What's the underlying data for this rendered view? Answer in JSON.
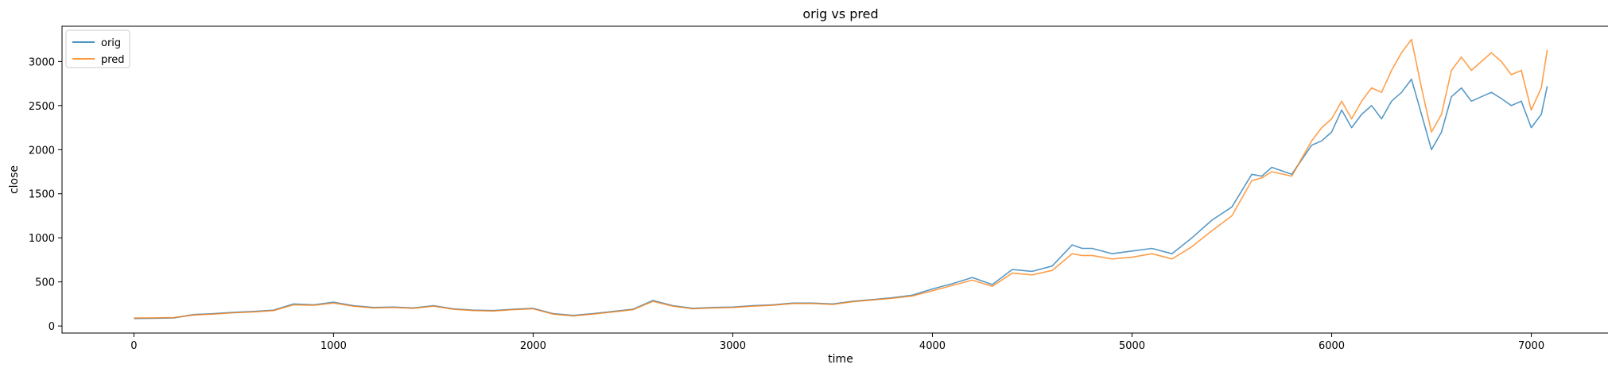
{
  "chart_data": {
    "type": "line",
    "title": "orig vs pred",
    "xlabel": "time",
    "ylabel": "close",
    "xlim": [
      -360,
      7440
    ],
    "ylim": [
      -80,
      3400
    ],
    "xticks": [
      0,
      1000,
      2000,
      3000,
      4000,
      5000,
      6000,
      7000
    ],
    "yticks": [
      0,
      500,
      1000,
      1500,
      2000,
      2500,
      3000
    ],
    "grid": false,
    "legend": "top-left",
    "series": [
      {
        "name": "orig",
        "color": "#1f77b4",
        "x": [
          0,
          100,
          200,
          300,
          400,
          500,
          600,
          700,
          800,
          900,
          1000,
          1100,
          1200,
          1300,
          1400,
          1500,
          1600,
          1700,
          1800,
          1900,
          2000,
          2100,
          2200,
          2300,
          2400,
          2500,
          2600,
          2700,
          2800,
          2900,
          3000,
          3100,
          3200,
          3300,
          3400,
          3500,
          3600,
          3700,
          3800,
          3900,
          4000,
          4100,
          4200,
          4300,
          4400,
          4500,
          4600,
          4700,
          4750,
          4800,
          4900,
          5000,
          5100,
          5200,
          5300,
          5400,
          5500,
          5600,
          5650,
          5700,
          5800,
          5900,
          5950,
          6000,
          6050,
          6100,
          6150,
          6200,
          6250,
          6300,
          6350,
          6400,
          6450,
          6500,
          6550,
          6600,
          6650,
          6700,
          6750,
          6800,
          6850,
          6900,
          6950,
          7000,
          7050,
          7080
        ],
        "y": [
          85,
          88,
          92,
          130,
          140,
          155,
          165,
          180,
          250,
          240,
          270,
          230,
          210,
          215,
          205,
          230,
          195,
          180,
          175,
          190,
          200,
          140,
          120,
          140,
          165,
          190,
          290,
          230,
          200,
          210,
          215,
          230,
          240,
          260,
          260,
          250,
          280,
          300,
          320,
          350,
          420,
          480,
          550,
          470,
          640,
          620,
          680,
          920,
          880,
          880,
          820,
          850,
          880,
          820,
          1000,
          1200,
          1350,
          1720,
          1700,
          1800,
          1720,
          2050,
          2100,
          2200,
          2450,
          2250,
          2400,
          2500,
          2350,
          2550,
          2650,
          2800,
          2400,
          2000,
          2200,
          2600,
          2700,
          2550,
          2600,
          2650,
          2580,
          2500,
          2550,
          2250,
          2400,
          2720
        ]
      },
      {
        "name": "pred",
        "color": "#ff7f0e",
        "x": [
          0,
          100,
          200,
          300,
          400,
          500,
          600,
          700,
          800,
          900,
          1000,
          1100,
          1200,
          1300,
          1400,
          1500,
          1600,
          1700,
          1800,
          1900,
          2000,
          2100,
          2200,
          2300,
          2400,
          2500,
          2600,
          2700,
          2800,
          2900,
          3000,
          3100,
          3200,
          3300,
          3400,
          3500,
          3600,
          3700,
          3800,
          3900,
          4000,
          4100,
          4200,
          4300,
          4400,
          4500,
          4600,
          4700,
          4750,
          4800,
          4900,
          5000,
          5100,
          5200,
          5300,
          5400,
          5500,
          5600,
          5650,
          5700,
          5800,
          5900,
          5950,
          6000,
          6050,
          6100,
          6150,
          6200,
          6250,
          6300,
          6350,
          6400,
          6450,
          6500,
          6550,
          6600,
          6650,
          6700,
          6750,
          6800,
          6850,
          6900,
          6950,
          7000,
          7050,
          7080
        ],
        "y": [
          90,
          92,
          95,
          125,
          135,
          150,
          160,
          175,
          240,
          235,
          260,
          225,
          205,
          210,
          200,
          225,
          190,
          175,
          170,
          185,
          195,
          135,
          115,
          135,
          160,
          185,
          280,
          225,
          195,
          205,
          210,
          225,
          235,
          255,
          255,
          245,
          275,
          295,
          315,
          340,
          400,
          460,
          520,
          450,
          600,
          580,
          630,
          820,
          800,
          800,
          760,
          780,
          820,
          760,
          900,
          1080,
          1250,
          1650,
          1680,
          1750,
          1700,
          2100,
          2250,
          2350,
          2550,
          2350,
          2550,
          2700,
          2650,
          2900,
          3100,
          3250,
          2700,
          2200,
          2400,
          2900,
          3050,
          2900,
          3000,
          3100,
          3000,
          2850,
          2900,
          2450,
          2700,
          3130
        ]
      }
    ]
  }
}
